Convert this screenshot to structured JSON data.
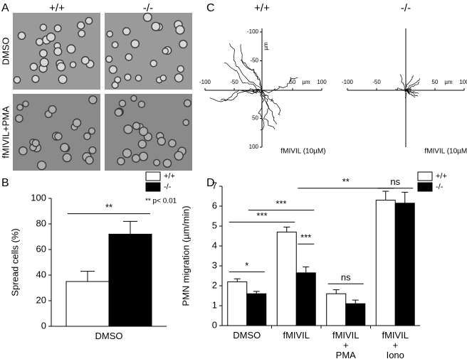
{
  "panel_labels": [
    "A",
    "B",
    "C",
    "D"
  ],
  "panel_a": {
    "columns": [
      "+/+",
      "-/-"
    ],
    "rows": [
      "DMSO",
      "fMIVIL+PMA"
    ]
  },
  "chart_data": [
    {
      "type": "tracks",
      "title": "+/+",
      "xlim": [
        -100,
        100
      ],
      "ylim": [
        -100,
        100
      ],
      "xticks": [
        -100,
        -50,
        50,
        100
      ],
      "yticks": [
        -100,
        -50,
        50,
        100
      ],
      "x_label": "µm",
      "y_label": "µm",
      "annotation": "fMIVIL (10µM)"
    },
    {
      "type": "tracks",
      "title": "-/-",
      "xlim": [
        -100,
        100
      ],
      "ylim": [
        -100,
        100
      ],
      "xticks": [
        -100,
        -50,
        50,
        100
      ],
      "x_label": "µm",
      "annotation": "fMIVIL (10µM)"
    },
    {
      "type": "bar",
      "y_label": "Spread cells (%)",
      "categories": [
        "DMSO"
      ],
      "series": [
        {
          "name": "+/+",
          "color": "#ffffff",
          "values": [
            35
          ],
          "errors": [
            8
          ]
        },
        {
          "name": "-/-",
          "color": "#000000",
          "values": [
            72
          ],
          "errors": [
            10
          ]
        }
      ],
      "ylim": [
        0,
        100
      ],
      "yticks": [
        0,
        20,
        40,
        60,
        80,
        100
      ],
      "annotation": "** p< 0.01",
      "significance": [
        {
          "label": "**",
          "from": [
            0,
            0
          ],
          "to": [
            0,
            1
          ],
          "y": 88
        }
      ]
    },
    {
      "type": "bar",
      "y_label": "PMN migration (µm/min)",
      "categories": [
        "DMSO",
        "fMIVIL",
        "fMIVIL\n+\nPMA",
        "fMIVIL\n+\nIono"
      ],
      "series": [
        {
          "name": "+/+",
          "color": "#ffffff",
          "values": [
            2.2,
            4.7,
            1.6,
            6.3
          ],
          "errors": [
            0.15,
            0.25,
            0.2,
            0.45
          ]
        },
        {
          "name": "-/-",
          "color": "#000000",
          "values": [
            1.6,
            2.65,
            1.1,
            6.15
          ],
          "errors": [
            0.12,
            0.3,
            0.18,
            0.55
          ]
        }
      ],
      "ylim": [
        0,
        7
      ],
      "yticks": [
        0,
        1,
        2,
        3,
        4,
        5,
        6,
        7
      ],
      "significance": [
        {
          "label": "*",
          "from": [
            0,
            0
          ],
          "to": [
            0,
            1
          ],
          "y": 2.7
        },
        {
          "label": "***",
          "from": [
            0,
            1
          ],
          "to": [
            1,
            1
          ],
          "y": 5.8
        },
        {
          "label": "***",
          "from": [
            0,
            0
          ],
          "to": [
            1,
            0
          ],
          "y": 5.2
        },
        {
          "label": "***",
          "from": [
            1,
            1
          ],
          "to": [
            1,
            1
          ],
          "y": 4.1
        },
        {
          "label": "**",
          "from": [
            1,
            1
          ],
          "to": [
            3,
            0
          ],
          "y": 6.9
        },
        {
          "label": "ns",
          "from": [
            2,
            0
          ],
          "to": [
            2,
            1
          ],
          "y": 2.1
        },
        {
          "label": "ns",
          "from": [
            3,
            0
          ],
          "to": [
            3,
            1
          ],
          "y": 6.9
        }
      ]
    }
  ]
}
